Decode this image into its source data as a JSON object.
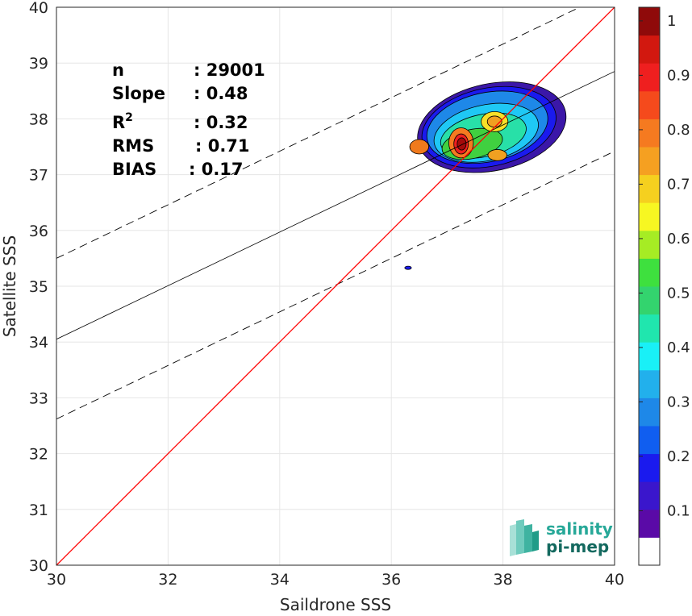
{
  "chart_data": {
    "type": "heatmap",
    "xlabel": "Saildrone SSS",
    "ylabel": "Satellite SSS",
    "xlim": [
      30,
      40
    ],
    "ylim": [
      30,
      40
    ],
    "x_ticks": [
      "30",
      "32",
      "34",
      "36",
      "38",
      "40"
    ],
    "y_ticks": [
      "30",
      "31",
      "32",
      "33",
      "34",
      "35",
      "36",
      "37",
      "38",
      "39",
      "40"
    ],
    "grid": true,
    "stats": [
      {
        "label": "n",
        "value": ": 29001"
      },
      {
        "label": "Slope",
        "value": ": 0.48"
      },
      {
        "label": "R",
        "sup": "2",
        "value": ": 0.32"
      },
      {
        "label": "RMS",
        "value": ": 0.71"
      },
      {
        "label": "BIAS",
        "value": ": 0.17"
      }
    ],
    "identity_line": {
      "from": [
        30,
        30
      ],
      "to": [
        40,
        40
      ],
      "color": "#ff0000"
    },
    "regression_line": {
      "from": [
        30,
        34.05
      ],
      "to": [
        40,
        38.85
      ]
    },
    "upper_dashed": {
      "from": [
        30,
        35.5
      ],
      "to": [
        40,
        40.3
      ]
    },
    "lower_dashed": {
      "from": [
        30,
        32.62
      ],
      "to": [
        40,
        37.42
      ]
    },
    "density_levels": [
      {
        "x": 37.8,
        "y": 37.85,
        "rx": 1.35,
        "ry": 0.78,
        "level": 0.05,
        "color": "#3b17a8"
      },
      {
        "x": 37.75,
        "y": 37.85,
        "rx": 1.22,
        "ry": 0.7,
        "level": 0.15,
        "color": "#1a1aee"
      },
      {
        "x": 37.72,
        "y": 37.85,
        "rx": 1.1,
        "ry": 0.62,
        "level": 0.25,
        "color": "#1e88e8"
      },
      {
        "x": 37.7,
        "y": 37.75,
        "rx": 0.95,
        "ry": 0.5,
        "level": 0.35,
        "color": "#1fc8f5"
      },
      {
        "x": 37.65,
        "y": 37.7,
        "rx": 0.78,
        "ry": 0.38,
        "level": 0.45,
        "color": "#28e0a8"
      },
      {
        "x": 37.45,
        "y": 37.55,
        "rx": 0.55,
        "ry": 0.26,
        "level": 0.55,
        "color": "#40d040"
      }
    ],
    "hotspots": [
      {
        "x": 37.25,
        "y": 37.57,
        "rx": 0.22,
        "ry": 0.27,
        "level": 0.8,
        "color": "#f57a20"
      },
      {
        "x": 37.25,
        "y": 37.55,
        "rx": 0.13,
        "ry": 0.18,
        "level": 0.9,
        "color": "#ee1f1f"
      },
      {
        "x": 37.26,
        "y": 37.55,
        "rx": 0.08,
        "ry": 0.11,
        "level": 1.0,
        "color": "#a30b0b"
      },
      {
        "x": 36.5,
        "y": 37.5,
        "rx": 0.17,
        "ry": 0.13,
        "level": 0.75,
        "color": "#f07a1d"
      },
      {
        "x": 37.85,
        "y": 37.95,
        "rx": 0.24,
        "ry": 0.18,
        "level": 0.65,
        "color": "#f7e028"
      },
      {
        "x": 37.85,
        "y": 37.95,
        "rx": 0.13,
        "ry": 0.1,
        "level": 0.75,
        "color": "#f0a021"
      },
      {
        "x": 37.9,
        "y": 37.35,
        "rx": 0.17,
        "ry": 0.1,
        "level": 0.75,
        "color": "#f0a021"
      },
      {
        "x": 36.3,
        "y": 35.33,
        "rx": 0.06,
        "ry": 0.03,
        "level": 0.1,
        "color": "#1a1aee"
      }
    ],
    "colorbar": {
      "ticks": [
        "0.1",
        "0.2",
        "0.3",
        "0.4",
        "0.5",
        "0.6",
        "0.7",
        "0.8",
        "0.9",
        "1"
      ],
      "colors": [
        "#ffffff",
        "#5a0aa7",
        "#3a16cc",
        "#1a1aee",
        "#105ef0",
        "#1e88e8",
        "#22b0ec",
        "#19f0f7",
        "#20e6ae",
        "#33d46e",
        "#3ee03e",
        "#a6ec24",
        "#f7f722",
        "#f5d01f",
        "#f5a021",
        "#f57a20",
        "#f54a1c",
        "#ef1f1f",
        "#d2180f",
        "#8f0a0a"
      ]
    }
  },
  "logo": {
    "line1": "salinity",
    "line2": "pi-mep"
  }
}
